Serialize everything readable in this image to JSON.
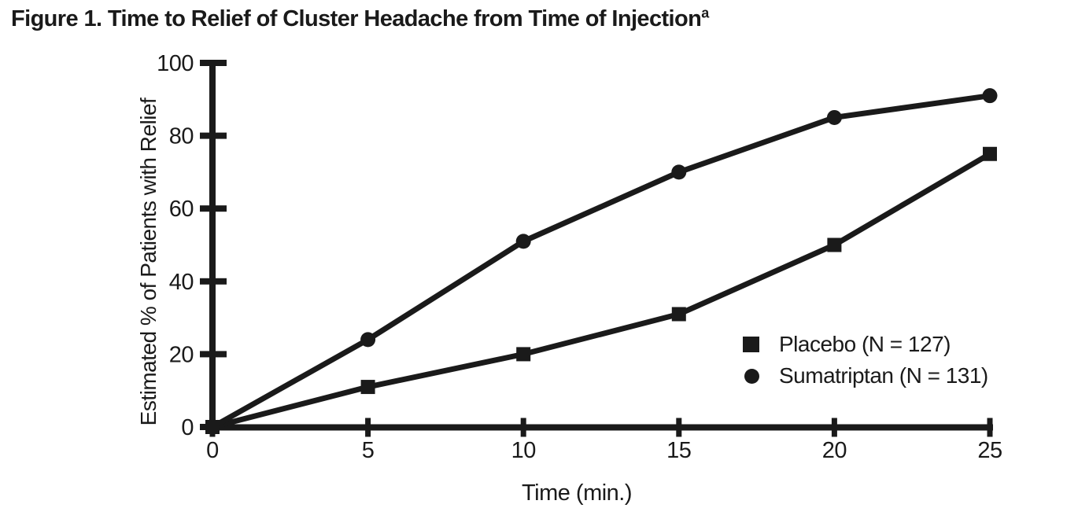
{
  "figure": {
    "title": "Figure 1. Time to Relief of Cluster Headache from Time of Injection",
    "title_footnote_marker": "a"
  },
  "colors": {
    "ink": "#1a1a1a",
    "background": "#ffffff"
  },
  "chart_data": {
    "type": "line",
    "title": "Figure 1. Time to Relief of Cluster Headache from Time of Injection",
    "xlabel": "Time (min.)",
    "ylabel": "Estimated % of Patients with Relief",
    "xlim": [
      0,
      25
    ],
    "ylim": [
      0,
      100
    ],
    "x_ticks": [
      0,
      5,
      10,
      15,
      20,
      25
    ],
    "y_ticks": [
      0,
      20,
      40,
      60,
      80,
      100
    ],
    "grid": false,
    "legend_position": "inside-right-lower",
    "x": [
      0,
      5,
      10,
      15,
      20,
      25
    ],
    "series": [
      {
        "name": "Placebo (N = 127)",
        "marker": "square",
        "values": [
          0,
          11,
          20,
          31,
          50,
          75
        ]
      },
      {
        "name": "Sumatriptan (N = 131)",
        "marker": "circle",
        "values": [
          0,
          24,
          51,
          70,
          85,
          91
        ]
      }
    ]
  }
}
